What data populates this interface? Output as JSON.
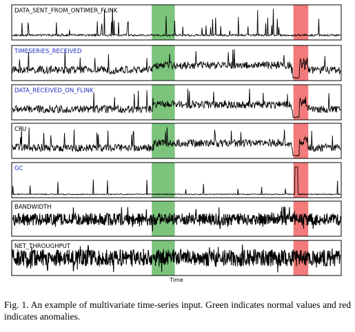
{
  "chart_data": {
    "type": "line",
    "xlabel": "Time",
    "x_range": [
      0,
      1
    ],
    "normal_region": [
      0.425,
      0.495
    ],
    "anomaly_region": [
      0.855,
      0.9
    ],
    "region_colors": {
      "normal": "#7cc47c",
      "anomaly": "#f37b7b"
    },
    "series": [
      {
        "name": "DATA_SENT_FROM_ONTIMER_FLINK",
        "label_color": "#000000",
        "pattern": "spiky",
        "y_range": [
          0,
          1
        ]
      },
      {
        "name": "TIMESERIES_RECEIVED",
        "label_color": "#1f2fc8",
        "pattern": "level_drop",
        "y_range": [
          0,
          1
        ]
      },
      {
        "name": "DATA_RECEIVED_ON_FLINK",
        "label_color": "#1f2fc8",
        "pattern": "level_drop",
        "y_range": [
          0,
          1
        ]
      },
      {
        "name": "CPU",
        "label_color": "#000000",
        "pattern": "level_drop",
        "y_range": [
          0,
          1
        ]
      },
      {
        "name": "GC",
        "label_color": "#1f2fc8",
        "pattern": "sparse_spikes",
        "y_range": [
          0,
          1
        ]
      },
      {
        "name": "BANDWIDTH",
        "label_color": "#000000",
        "pattern": "dense_noise",
        "y_range": [
          0,
          1
        ]
      },
      {
        "name": "NET_THROUGHPUT",
        "label_color": "#000000",
        "pattern": "dense_noise_wide",
        "y_range": [
          0,
          1
        ]
      }
    ]
  },
  "caption": "Fig. 1.  An example of multivariate time-series input. Green indicates normal values and red indicates anomalies."
}
